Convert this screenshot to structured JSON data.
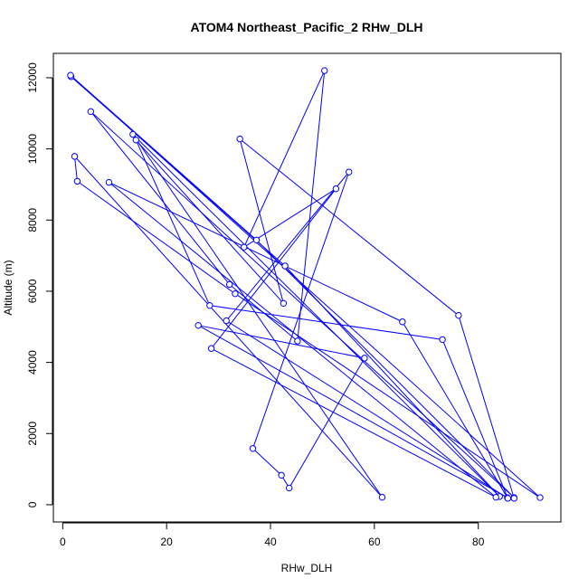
{
  "chart_data": {
    "type": "line",
    "title": "ATOM4 Northeast_Pacific_2 RHw_DLH",
    "xlabel": "RHw_DLH",
    "ylabel": "Altitude (m)",
    "xlim": [
      -1.8,
      95.9
    ],
    "ylim": [
      -485,
      12685
    ],
    "xticks": [
      0,
      20,
      40,
      60,
      80
    ],
    "yticks": [
      0,
      2000,
      4000,
      6000,
      8000,
      10000,
      12000
    ],
    "grid": false,
    "marker": "open-circle",
    "series": [
      {
        "points": [
          [
            1.6,
            12030
          ],
          [
            42.8,
            6710
          ],
          [
            84.1,
            230
          ],
          [
            13.5,
            10410
          ],
          [
            61.5,
            210
          ],
          [
            2.3,
            9790
          ],
          [
            2.8,
            9090
          ],
          [
            33.2,
            5930
          ],
          [
            91.9,
            200
          ],
          [
            1.5,
            12070
          ],
          [
            37.3,
            7440
          ],
          [
            86.9,
            200
          ],
          [
            5.4,
            11050
          ],
          [
            32.1,
            6190
          ],
          [
            45.2,
            4600
          ],
          [
            50.4,
            12200
          ],
          [
            34.9,
            7240
          ],
          [
            52.6,
            8880
          ],
          [
            28.6,
            4390
          ],
          [
            83.4,
            210
          ],
          [
            8.9,
            9060
          ],
          [
            65.4,
            5140
          ],
          [
            85.6,
            200
          ],
          [
            26.1,
            5040
          ],
          [
            58.1,
            4120
          ],
          [
            43.6,
            470
          ],
          [
            42.1,
            830
          ],
          [
            36.6,
            1580
          ],
          [
            55.1,
            9350
          ],
          [
            31.5,
            5170
          ],
          [
            85.7,
            180
          ],
          [
            73.1,
            4640
          ],
          [
            28.3,
            5600
          ],
          [
            14.1,
            10250
          ],
          [
            42.5,
            5660
          ],
          [
            34.1,
            10280
          ],
          [
            76.2,
            5320
          ],
          [
            86.9,
            180
          ]
        ]
      }
    ],
    "colors": {
      "series": "#0000ff",
      "axes": "#000000",
      "background": "#ffffff"
    }
  }
}
